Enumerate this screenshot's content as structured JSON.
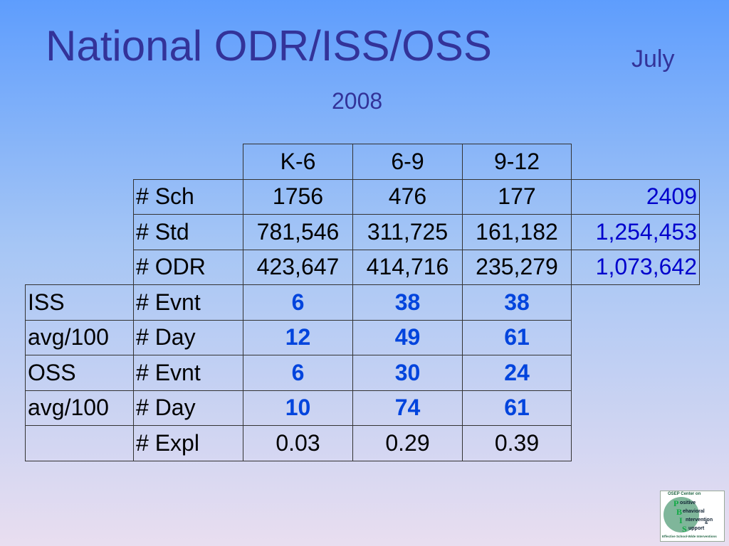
{
  "title": {
    "main": "National ODR/ISS/OSS",
    "month": "July",
    "year": "2008"
  },
  "table": {
    "header": [
      "K-6",
      "6-9",
      "9-12"
    ],
    "rows": [
      {
        "label": "# Sch",
        "values": [
          "1756",
          "476",
          "177"
        ],
        "total": "2409"
      },
      {
        "label": "# Std",
        "values": [
          "781,546",
          "311,725",
          "161,182"
        ],
        "total": "1,254,453"
      },
      {
        "label": "# ODR",
        "values": [
          "423,647",
          "414,716",
          "235,279"
        ],
        "total": "1,073,642"
      },
      {
        "group": "ISS",
        "label": "# Evnt",
        "values": [
          "6",
          "38",
          "38"
        ],
        "highlight": true
      },
      {
        "group": "avg/100",
        "label": "# Day",
        "values": [
          "12",
          "49",
          "61"
        ],
        "highlight": true
      },
      {
        "group": "OSS",
        "label": "# Evnt",
        "values": [
          "6",
          "30",
          "24"
        ],
        "highlight": true
      },
      {
        "group": "avg/100",
        "label": "# Day",
        "values": [
          "10",
          "74",
          "61"
        ],
        "highlight": true
      },
      {
        "label": "# Expl",
        "values": [
          "0.03",
          "0.29",
          "0.39"
        ]
      }
    ]
  },
  "logo": {
    "top": "OSEP Center on",
    "letters": [
      "P",
      "B",
      "I",
      "S"
    ],
    "words": [
      "ositive",
      "ehavioral",
      "ntervention",
      "upport"
    ],
    "amp": "&",
    "bottom": "Effective School-Wide Interventions"
  }
}
